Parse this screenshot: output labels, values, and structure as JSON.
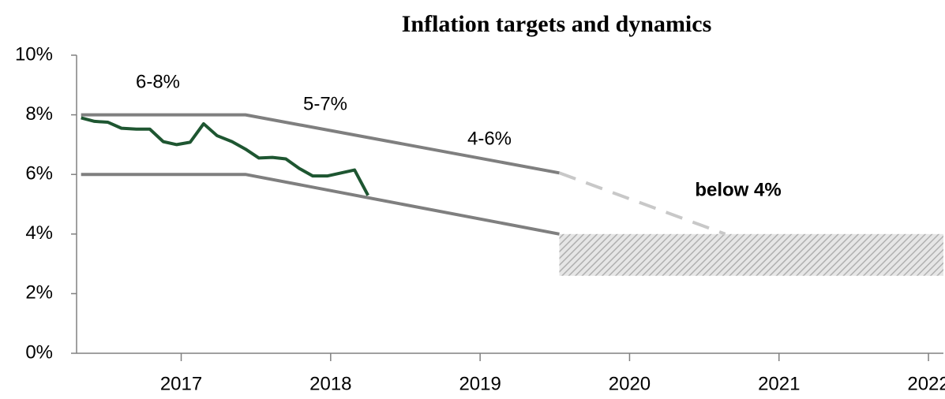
{
  "chart_data": {
    "type": "line",
    "title": "Inflation targets and dynamics",
    "xlim": [
      2016.3,
      2022.1
    ],
    "xticks": [
      2017,
      2018,
      2019,
      2020,
      2021,
      2022
    ],
    "ylim": [
      0,
      10
    ],
    "yticks": [
      {
        "value": 0,
        "label": "0%"
      },
      {
        "value": 2,
        "label": "2%"
      },
      {
        "value": 4,
        "label": "4%"
      },
      {
        "value": 6,
        "label": "6%"
      },
      {
        "value": 8,
        "label": "8%"
      },
      {
        "value": 10,
        "label": "10%"
      }
    ],
    "grid": false,
    "series": [
      {
        "color": "#7f7f7f",
        "dashed": false,
        "x": [
          2016.33,
          2017.43,
          2019.53
        ],
        "values": [
          8,
          8,
          6.05
        ]
      },
      {
        "color": "#7f7f7f",
        "dashed": false,
        "x": [
          2016.33,
          2017.43,
          2019.53
        ],
        "values": [
          6,
          6,
          4
        ]
      },
      {
        "color": "#c8c8c8",
        "dashed": true,
        "x": [
          2019.53,
          2020.64
        ],
        "values": [
          6.05,
          4
        ]
      },
      {
        "color": "#1e5631",
        "dashed": false,
        "x": [
          2016.33,
          2016.42,
          2016.51,
          2016.6,
          2016.7,
          2016.79,
          2016.88,
          2016.97,
          2017.06,
          2017.15,
          2017.24,
          2017.34,
          2017.43,
          2017.52,
          2017.61,
          2017.7,
          2017.79,
          2017.88,
          2017.98,
          2018.07,
          2018.16,
          2018.25
        ],
        "values": [
          7.9,
          7.78,
          7.75,
          7.55,
          7.52,
          7.52,
          7.1,
          7.0,
          7.08,
          7.7,
          7.3,
          7.1,
          6.85,
          6.55,
          6.57,
          6.52,
          6.2,
          5.95,
          5.95,
          6.05,
          6.15,
          5.3
        ]
      }
    ],
    "band": {
      "x": [
        2019.53,
        2022.1
      ],
      "low": 2.6,
      "high": 4
    },
    "annotations": [
      "6-8%",
      "5-7%",
      "4-6%",
      "below 4%"
    ]
  }
}
